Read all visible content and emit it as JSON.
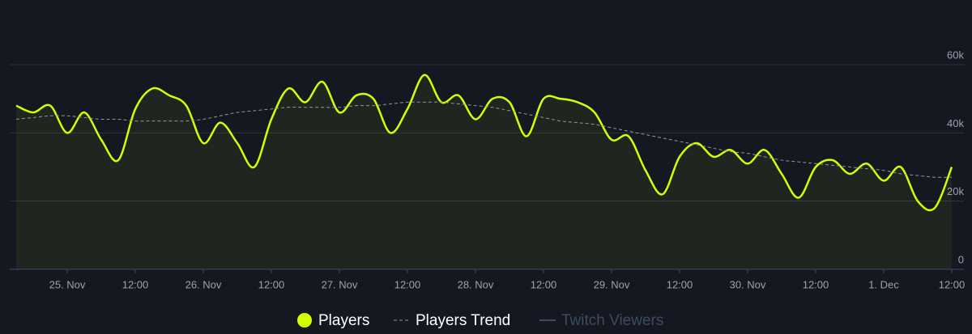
{
  "chart_data": {
    "type": "line",
    "categories": [
      null,
      null,
      null,
      "25. Nov",
      null,
      null,
      null,
      "12:00",
      null,
      null,
      null,
      "26. Nov",
      null,
      null,
      null,
      "12:00",
      null,
      null,
      null,
      "27. Nov",
      null,
      null,
      null,
      "12:00",
      null,
      null,
      null,
      "28. Nov",
      null,
      null,
      null,
      "12:00",
      null,
      null,
      null,
      "29. Nov",
      null,
      null,
      null,
      "12:00",
      null,
      null,
      null,
      "30. Nov",
      null,
      null,
      null,
      "12:00",
      null,
      null,
      null,
      "1. Dec",
      null,
      null,
      null,
      "12:00"
    ],
    "series": [
      {
        "name": "Players",
        "color": "#d4ff00",
        "style": "solid",
        "fill": true,
        "values": [
          48000,
          46000,
          48000,
          40000,
          46000,
          38000,
          32000,
          47000,
          53000,
          51000,
          48000,
          37000,
          43000,
          37000,
          30000,
          44000,
          53000,
          49000,
          55000,
          46000,
          51000,
          50000,
          40000,
          47000,
          57000,
          49000,
          51000,
          44000,
          50000,
          49000,
          39000,
          50000,
          50000,
          49000,
          46000,
          38000,
          39000,
          29000,
          22000,
          33000,
          37000,
          33000,
          35000,
          31000,
          35000,
          28000,
          21000,
          30000,
          32000,
          28000,
          31000,
          26000,
          30000,
          20000,
          18000,
          30000
        ]
      },
      {
        "name": "Players Trend",
        "color": "#8f98a0",
        "style": "dashed",
        "fill": false,
        "values": [
          44000,
          44500,
          45000,
          45000,
          44500,
          44000,
          44000,
          43500,
          43500,
          43500,
          43500,
          44000,
          45000,
          46000,
          46500,
          47000,
          47500,
          47500,
          47500,
          47500,
          48000,
          48000,
          48500,
          49000,
          49000,
          49000,
          48500,
          48000,
          47500,
          46500,
          45500,
          44500,
          43500,
          43000,
          42500,
          41500,
          40500,
          39500,
          38500,
          37500,
          36500,
          35500,
          34500,
          34000,
          33000,
          32000,
          31500,
          31000,
          30500,
          30000,
          29500,
          29000,
          28000,
          27500,
          27000,
          27000
        ]
      },
      {
        "name": "Twitch Viewers",
        "color": "#3d4a62",
        "style": "solid",
        "fill": false,
        "visible": false
      }
    ],
    "ylim": [
      0,
      75000
    ],
    "yticks": [
      0,
      {
        "value": 20000,
        "label": "20k"
      },
      {
        "value": 40000,
        "label": "40k"
      },
      {
        "value": 60000,
        "label": "60k"
      }
    ],
    "grid": true
  }
}
